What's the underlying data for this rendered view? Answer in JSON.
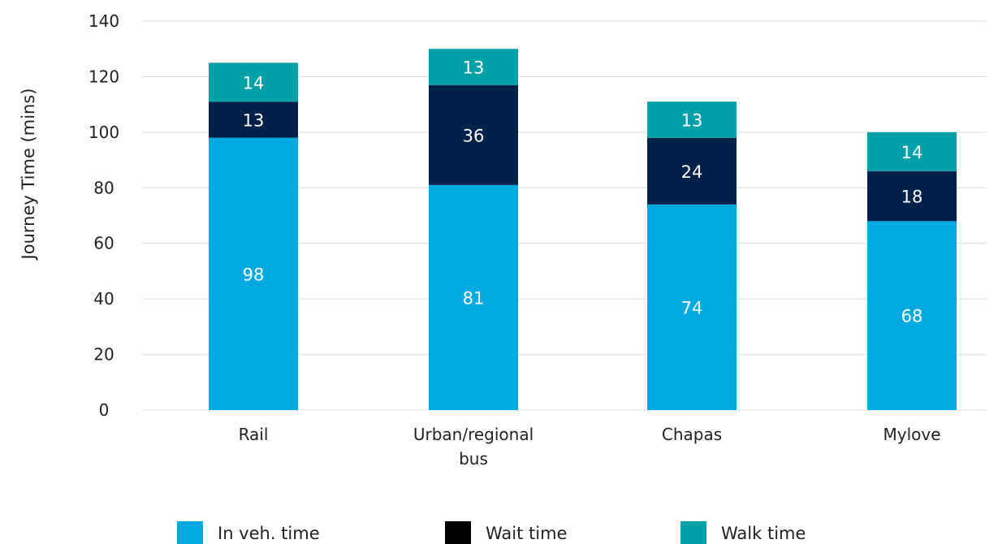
{
  "chart_data": {
    "type": "bar",
    "stacked": true,
    "categories": [
      "Rail",
      "Urban/regional bus",
      "Chapas",
      "Mylove"
    ],
    "series": [
      {
        "name": "In veh. time",
        "values": [
          98,
          81,
          74,
          68
        ],
        "color": "#00a9e0",
        "label_color": "#ffffff"
      },
      {
        "name": "Wait time",
        "values": [
          13,
          36,
          24,
          18
        ],
        "color": "#00224a",
        "label_color": "#ffffff"
      },
      {
        "name": "Walk time",
        "values": [
          14,
          13,
          13,
          14
        ],
        "color": "#00a0a8",
        "label_color": "#ffffff"
      }
    ],
    "legend_swatch_colors": [
      "#00a9e0",
      "#000000",
      "#00a0a8"
    ],
    "xlabel": "",
    "ylabel": "Journey Time (mins)",
    "ylim": [
      0,
      140
    ],
    "yticks": [
      0,
      20,
      40,
      60,
      80,
      100,
      120,
      140
    ],
    "grid": true,
    "legend_position": "bottom"
  }
}
